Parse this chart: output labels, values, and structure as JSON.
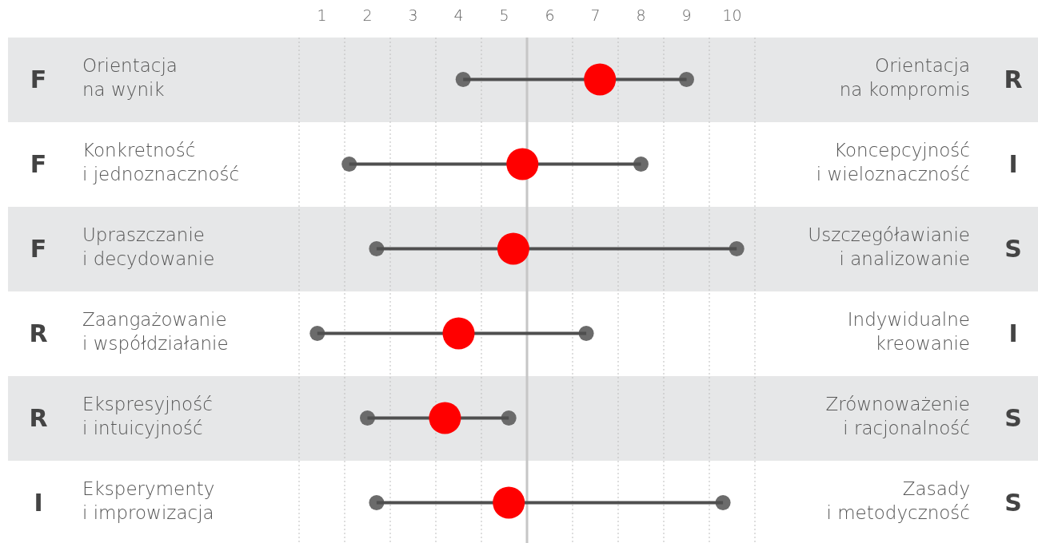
{
  "chart_data": {
    "type": "scatter",
    "orientation": "horizontal",
    "categories": [
      "Orientacja\nna wynik",
      "Konkretność\ni jednoznaczność",
      "Upraszczanie\ni decydowanie",
      "Zaangażowanie\ni współdziałanie",
      "Ekspresyjność\ni intuicyjność",
      "Eksperymenty\ni improwizacja"
    ],
    "y2_categories": [
      "Orientacja\nna kompromis",
      "Koncepcyjność\ni wieloznaczność",
      "Uszczegóławianie\ni analizowanie",
      "Indywidualne\nkreowanie",
      "Zrównoważenie\ni racjonalność",
      "Zasady\ni metodyczność"
    ],
    "annotations": [
      "F",
      "F",
      "F",
      "R",
      "R",
      "I",
      "R",
      "I",
      "S",
      "I",
      "S",
      "S"
    ],
    "series": [
      {
        "color": "#6b6b6b",
        "x": [
          "Orientacja\nna wynik",
          "Konkretność\ni jednoznaczność",
          "Upraszczanie\ni decydowanie",
          "Zaangażowanie\ni współdziałanie",
          "Ekspresyjność\ni intuicyjność",
          "Eksperymenty\ni improwizacja"
        ],
        "values": [
          4.1,
          1.6,
          2.2,
          0.9,
          2.0,
          2.2
        ]
      },
      {
        "color": "#6b6b6b",
        "x": [
          "Orientacja\nna wynik",
          "Konkretność\ni jednoznaczność",
          "Upraszczanie\ni decydowanie",
          "Zaangażowanie\ni współdziałanie",
          "Ekspresyjność\ni intuicyjność",
          "Eksperymenty\ni improwizacja"
        ],
        "values": [
          9.0,
          8.0,
          10.1,
          6.8,
          5.1,
          9.8
        ]
      },
      {
        "type": "bar",
        "color": "#4f4f4f",
        "base": [
          4.1,
          1.6,
          2.2,
          0.9,
          2.0,
          2.2
        ],
        "values": [
          4.9,
          6.4,
          7.9,
          5.9,
          3.1,
          7.6
        ]
      },
      {
        "color": "#ff0000",
        "x": [
          "Orientacja\nna wynik",
          "Konkretność\ni jednoznaczność",
          "Upraszczanie\ni decydowanie",
          "Zaangażowanie\ni współdziałanie",
          "Ekspresyjność\ni intuicyjność",
          "Eksperymenty\ni improwizacja"
        ],
        "values": [
          7.1,
          5.4,
          5.2,
          4.0,
          3.7,
          5.1
        ]
      }
    ],
    "xlim": [
      0.5,
      10.5
    ],
    "xticks": [
      1,
      2,
      3,
      4,
      5,
      6,
      7,
      8,
      9,
      10,
      {
        "value": 0.5,
        "label": null
      },
      {
        "value": 1.5,
        "label": null
      },
      {
        "value": 2.5,
        "label": null
      },
      {
        "value": 3.5,
        "label": null
      },
      {
        "value": 4.5,
        "label": null
      },
      {
        "value": 6.5,
        "label": null
      },
      {
        "value": 7.5,
        "label": null
      },
      {
        "value": 8.5,
        "label": null
      },
      {
        "value": 9.5,
        "label": null
      },
      {
        "value": 10.5,
        "label": null
      }
    ],
    "grid": "x",
    "marker": "circle",
    "ref_lines": [
      {
        "axis": "x",
        "value": 5.5,
        "label": null,
        "color": "#c6c6c6"
      }
    ]
  }
}
